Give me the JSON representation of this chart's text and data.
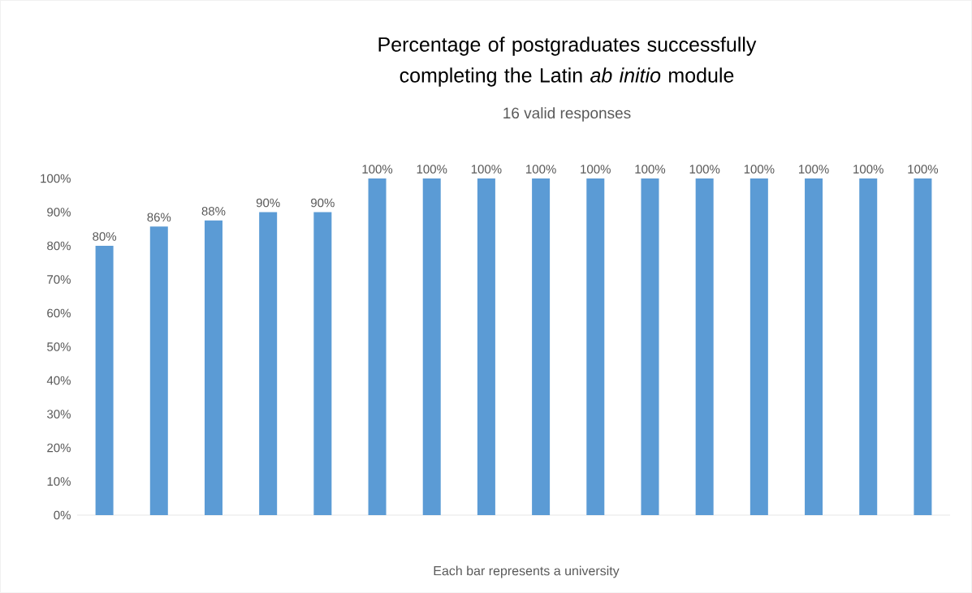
{
  "chart_data": {
    "type": "bar",
    "title": "Percentage of postgraduates successfully completing the Latin *ab initio* module",
    "subtitle": "16 valid responses",
    "xlabel": "Each bar represents a university",
    "categories": [
      null,
      null,
      null,
      null,
      null,
      null,
      null,
      null,
      null,
      null,
      null,
      null,
      null,
      null,
      null,
      null
    ],
    "values": [
      80,
      85.7,
      87.5,
      90,
      90,
      100,
      100,
      100,
      100,
      100,
      100,
      100,
      100,
      100,
      100,
      100
    ],
    "value_labels": [
      "80%",
      "86%",
      "88%",
      "90%",
      "90%",
      "100%",
      "100%",
      "100%",
      "100%",
      "100%",
      "100%",
      "100%",
      "100%",
      "100%",
      "100%",
      "100%"
    ],
    "color": "#5b9bd5",
    "ylim": [
      0,
      100
    ],
    "yticks": [
      {
        "value": 0,
        "label": "0%"
      },
      {
        "value": 10,
        "label": "10%"
      },
      {
        "value": 20,
        "label": "20%"
      },
      {
        "value": 30,
        "label": "30%"
      },
      {
        "value": 40,
        "label": "40%"
      },
      {
        "value": 50,
        "label": "50%"
      },
      {
        "value": 60,
        "label": "60%"
      },
      {
        "value": 70,
        "label": "70%"
      },
      {
        "value": 80,
        "label": "80%"
      },
      {
        "value": 90,
        "label": "90%"
      },
      {
        "value": 100,
        "label": "100%"
      }
    ]
  }
}
